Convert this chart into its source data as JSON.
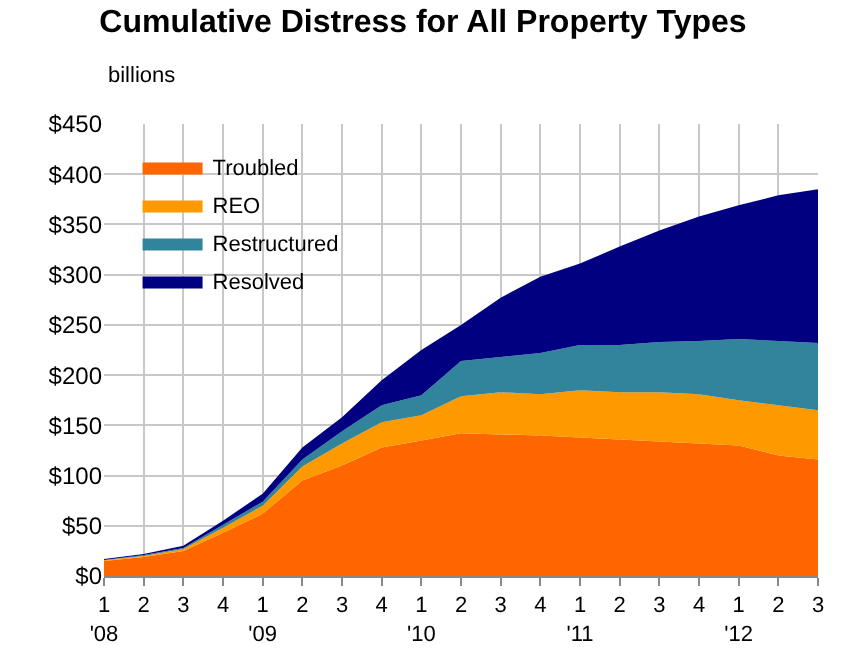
{
  "chart_data": {
    "type": "area",
    "stacked": true,
    "title": "Cumulative Distress for All Property Types",
    "ylabel": "billions",
    "categories": [
      "1\n'08",
      "2",
      "3",
      "4",
      "1\n'09",
      "2",
      "3",
      "4",
      "1\n'10",
      "2",
      "3",
      "4",
      "1\n'11",
      "2",
      "3",
      "4",
      "1\n'12",
      "2",
      "3"
    ],
    "series": [
      {
        "name": "Troubled",
        "color": "#ff6600",
        "values": [
          15,
          19,
          25,
          43,
          62,
          95,
          110,
          128,
          135,
          142,
          141,
          140,
          138,
          136,
          134,
          132,
          130,
          120,
          116
        ]
      },
      {
        "name": "REO",
        "color": "#ff9900",
        "values": [
          1,
          1,
          2,
          5,
          8,
          14,
          22,
          25,
          25,
          37,
          42,
          41,
          47,
          47,
          49,
          49,
          45,
          50,
          49
        ]
      },
      {
        "name": "Restructured",
        "color": "#31849b",
        "values": [
          0,
          1,
          1,
          3,
          4,
          7,
          12,
          17,
          20,
          35,
          35,
          41,
          45,
          47,
          50,
          53,
          61,
          64,
          67
        ]
      },
      {
        "name": "Resolved",
        "color": "#000080",
        "values": [
          1,
          1,
          2,
          4,
          8,
          12,
          14,
          25,
          45,
          36,
          59,
          76,
          81,
          98,
          111,
          124,
          133,
          145,
          153
        ]
      }
    ],
    "ylim": [
      0,
      450
    ],
    "yticks": [
      {
        "value": 0,
        "label": "$0"
      },
      {
        "value": 50,
        "label": "$50"
      },
      {
        "value": 100,
        "label": "$100"
      },
      {
        "value": 150,
        "label": "$150"
      },
      {
        "value": 200,
        "label": "$200"
      },
      {
        "value": 250,
        "label": "$250"
      },
      {
        "value": 300,
        "label": "$300"
      },
      {
        "value": 350,
        "label": "$350"
      },
      {
        "value": 400,
        "label": "$400"
      },
      {
        "value": 450,
        "label": "$450"
      }
    ],
    "grid": true,
    "legend": "top left"
  }
}
